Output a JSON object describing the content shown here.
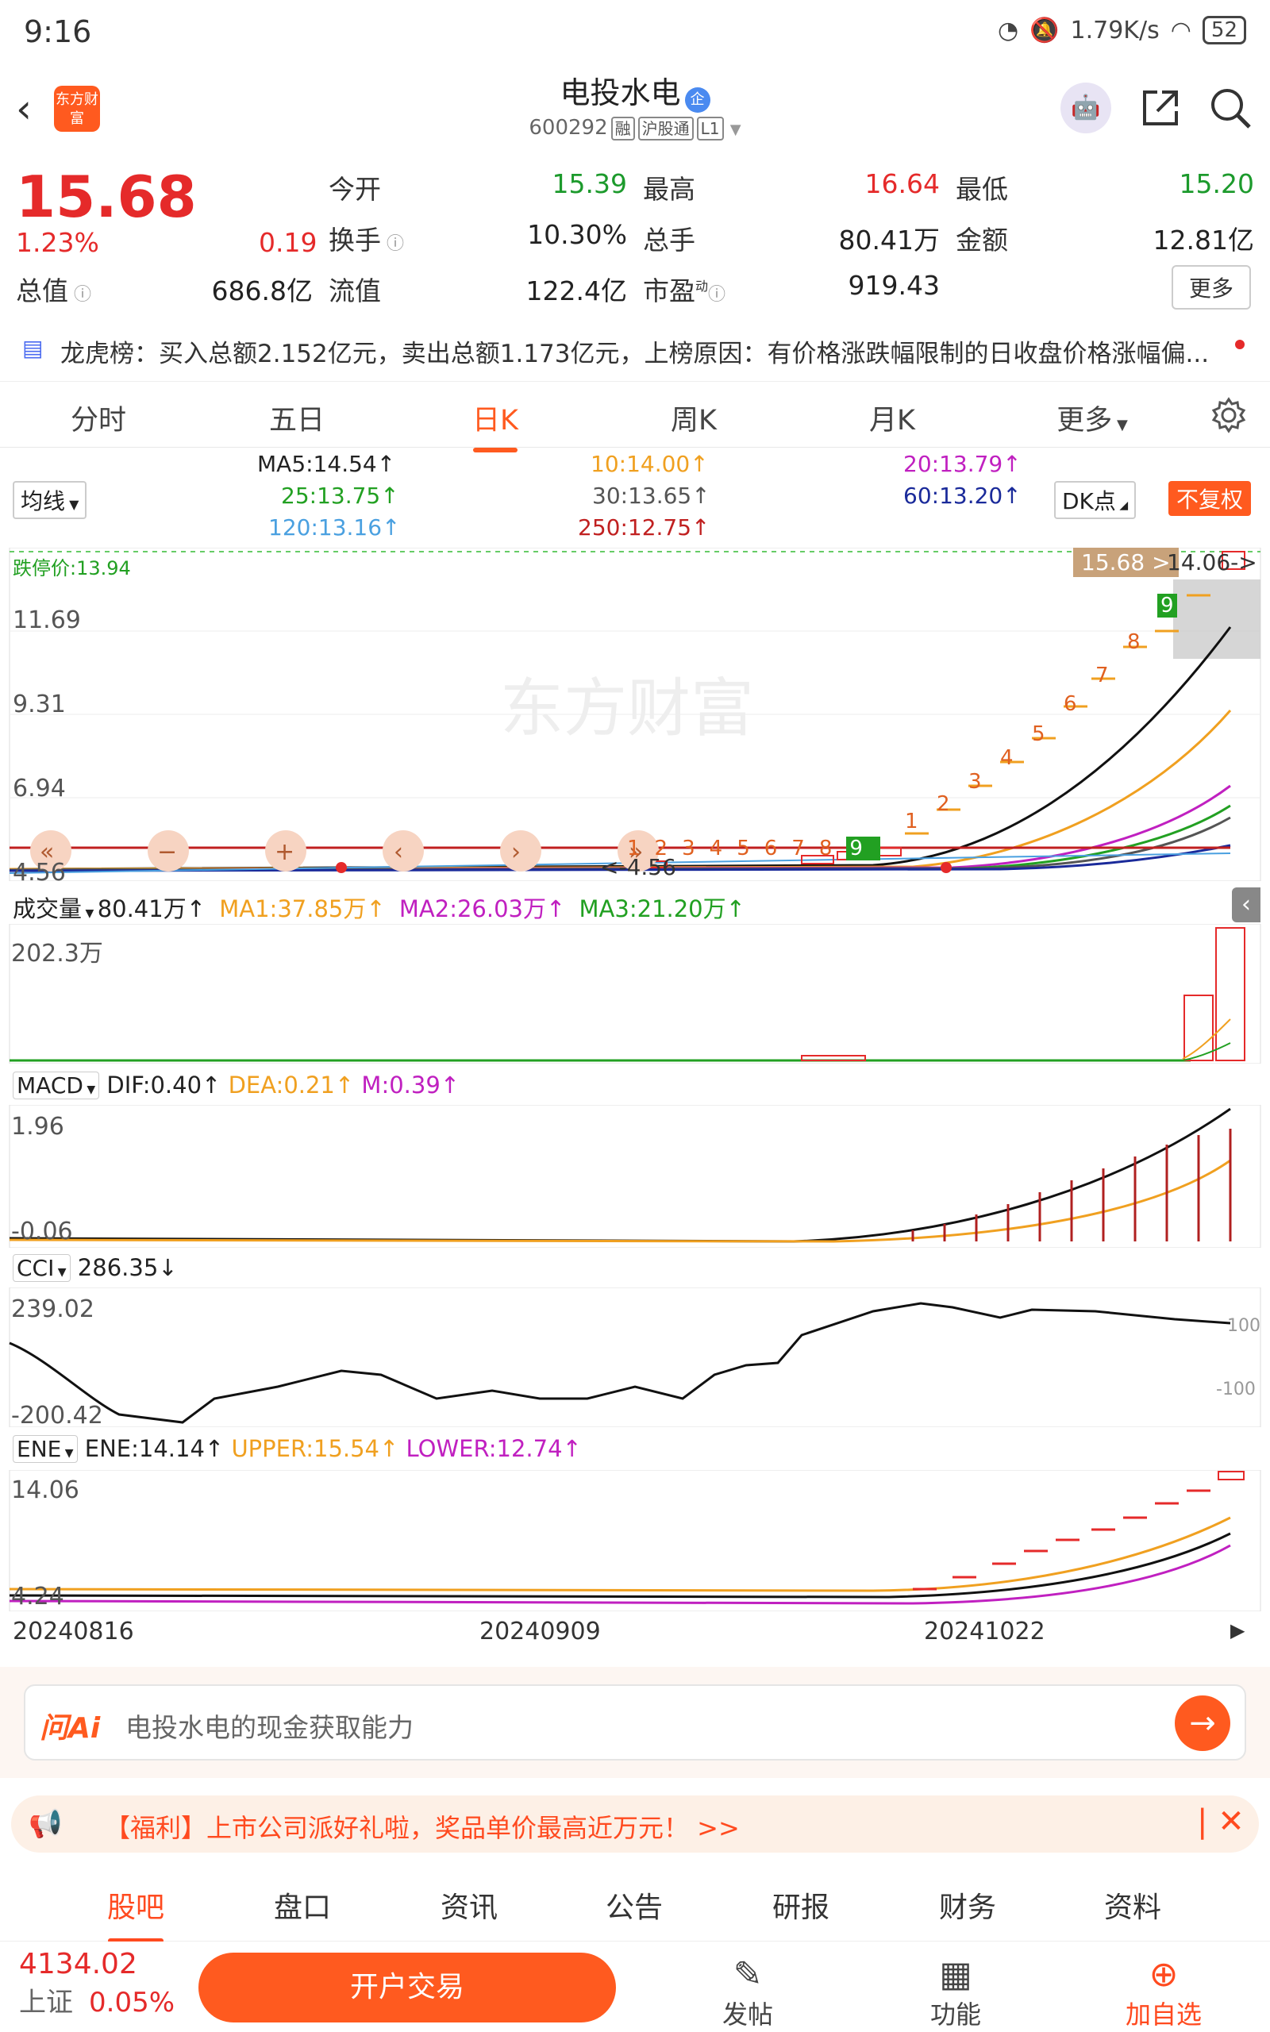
{
  "status": {
    "time": "9:16",
    "speed": "1.79K/s",
    "battery": "52"
  },
  "header": {
    "logo_text": "东方财富",
    "title": "电投水电",
    "badge": "企",
    "code": "600292",
    "tags": [
      "融",
      "沪股通",
      "L1"
    ]
  },
  "quote": {
    "price": "15.68",
    "change_pct": "1.23%",
    "change": "0.19",
    "rows": [
      [
        {
          "label": "今开",
          "value": "15.39",
          "color": "green"
        },
        {
          "label": "最高",
          "value": "16.64",
          "color": "red"
        },
        {
          "label": "最低",
          "value": "15.20",
          "color": "green"
        }
      ],
      [
        {
          "label": "换手",
          "value": "10.30%",
          "color": "black"
        },
        {
          "label": "总手",
          "value": "80.41万",
          "color": "black"
        },
        {
          "label": "金额",
          "value": "12.81亿",
          "color": "black"
        }
      ],
      [
        {
          "label": "流值",
          "value": "122.4亿",
          "color": "black"
        },
        {
          "label": "市盈",
          "value": "919.43",
          "color": "black"
        }
      ]
    ],
    "total_value_label": "总值",
    "total_value": "686.8亿",
    "more": "更多"
  },
  "lhb": {
    "text": "龙虎榜：买入总额2.152亿元，卖出总额1.173亿元，上榜原因：有价格涨跌幅限制的日收盘价格涨幅偏..."
  },
  "tabs": [
    "分时",
    "五日",
    "日K",
    "周K",
    "月K",
    "更多"
  ],
  "ma_bar": {
    "selector": "均线",
    "items": [
      {
        "text": "MA5:14.54",
        "color": "#222222"
      },
      {
        "text": "10:14.00",
        "color": "#f0a020"
      },
      {
        "text": "20:13.79",
        "color": "#c020c0"
      },
      {
        "text": "25:13.75",
        "color": "#22a022"
      },
      {
        "text": "30:13.65",
        "color": "#555555"
      },
      {
        "text": "60:13.20",
        "color": "#1a2a9a"
      },
      {
        "text": "120:13.16",
        "color": "#4aa0e0"
      },
      {
        "text": "250:12.75",
        "color": "#c02020"
      }
    ],
    "dk": "DK点",
    "adjust": "不复权"
  },
  "kline": {
    "limit_down_label": "跌停价:13.94",
    "current_tag": "15.68",
    "high_tag": "14.06->",
    "low_tag": "<-4.56",
    "axis": [
      "11.69",
      "9.31",
      "6.94",
      "4.56"
    ],
    "watermark": "东方财富",
    "seq_numbers_early": [
      "1",
      "2",
      "3",
      "4",
      "5",
      "6",
      "7",
      "8",
      "9"
    ],
    "seq_numbers_late": [
      "1",
      "2",
      "3",
      "4",
      "5",
      "6",
      "7",
      "8",
      "9"
    ]
  },
  "volume": {
    "label": "成交量",
    "value": "80.41万",
    "ma1": "MA1:37.85万",
    "ma2": "MA2:26.03万",
    "ma3": "MA3:21.20万",
    "axis_top": "202.3万"
  },
  "macd": {
    "label": "MACD",
    "dif": "DIF:0.40",
    "dea": "DEA:0.21",
    "m": "M:0.39",
    "axis_top": "1.96",
    "axis_bottom": "-0.06"
  },
  "cci": {
    "label": "CCI",
    "value": "286.35",
    "axis_top": "239.02",
    "axis_bottom": "-200.42",
    "ref_high": "100",
    "ref_low": "-100"
  },
  "ene": {
    "label": "ENE",
    "ene": "ENE:14.14",
    "upper": "UPPER:15.54",
    "lower": "LOWER:12.74",
    "axis_top": "14.06",
    "axis_bottom": "4.24"
  },
  "dates": [
    "20240816",
    "20240909",
    "20241022"
  ],
  "ask": {
    "brand": "问Ai",
    "placeholder": "电投水电的现金获取能力"
  },
  "promo": {
    "text": "【福利】上市公司派好礼啦，奖品单价最高近万元！ >>"
  },
  "subtabs": [
    "股吧",
    "盘口",
    "资讯",
    "公告",
    "研报",
    "财务",
    "资料"
  ],
  "bottom": {
    "index_value": "4134.02",
    "index_name": "上证",
    "index_change": "0.05%",
    "trade": "开户交易",
    "post": "发帖",
    "func": "功能",
    "add": "加自选"
  }
}
